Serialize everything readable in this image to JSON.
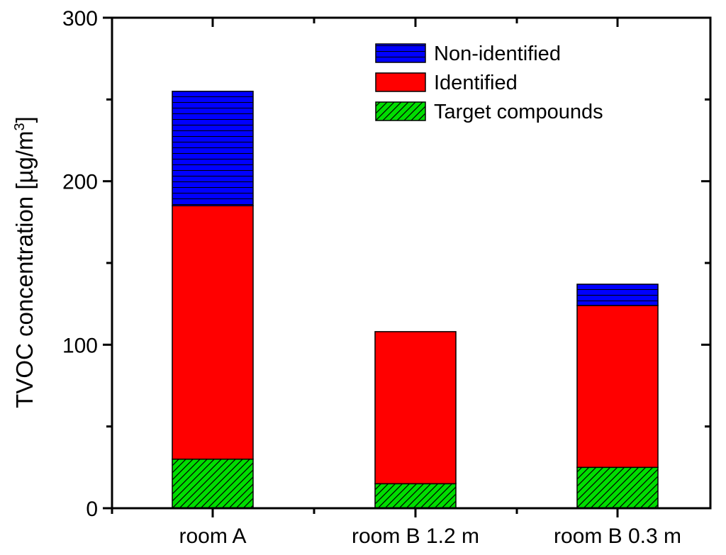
{
  "chart_data": {
    "type": "bar",
    "stacked": true,
    "categories": [
      "room A",
      "room B 1.2 m",
      "room B 0.3 m"
    ],
    "series": [
      {
        "name": "Target compounds",
        "values": [
          30,
          15,
          25
        ],
        "color": "#00dd00",
        "pattern": "diagonal-hatch"
      },
      {
        "name": "Identified",
        "values": [
          155,
          93,
          99
        ],
        "color": "#ff0000",
        "pattern": "solid"
      },
      {
        "name": "Non-identified",
        "values": [
          70,
          0,
          13
        ],
        "color": "#0000ff",
        "pattern": "horizontal-lines"
      }
    ],
    "legend_order": [
      "Non-identified",
      "Identified",
      "Target compounds"
    ],
    "legend_position": "top-right",
    "ylabel_main": "TVOC concentration [",
    "ylabel_unit": "µg/m",
    "ylabel_sup": "3",
    "ylabel_close": "]",
    "xlabel": "",
    "title": "",
    "ylim": [
      0,
      300
    ],
    "yticks": [
      0,
      100,
      200,
      300
    ],
    "grid": false
  }
}
